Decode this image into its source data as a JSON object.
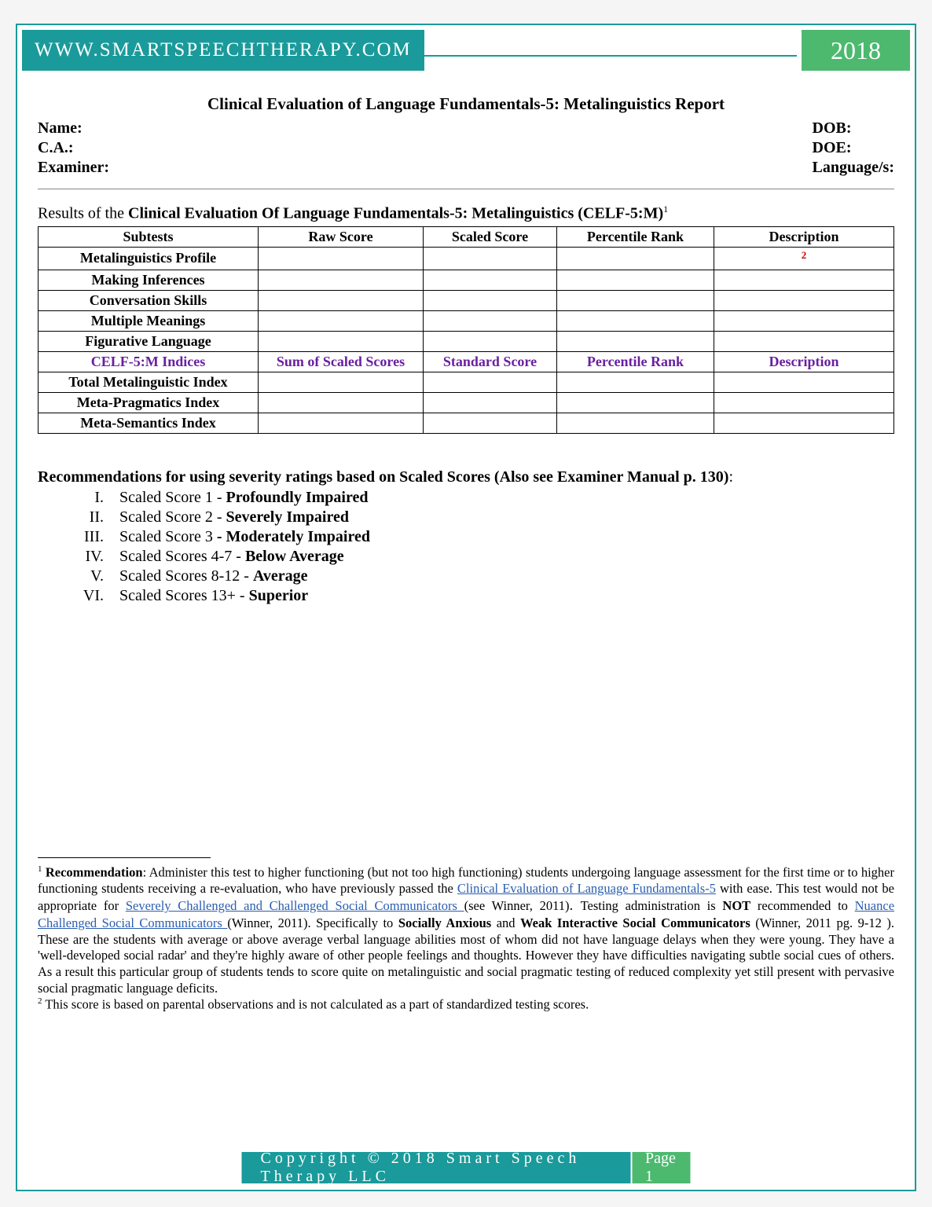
{
  "header": {
    "url": "WWW.SMARTSPEECHTHERAPY.COM",
    "year": "2018"
  },
  "report": {
    "title": "Clinical Evaluation of Language Fundamentals-5: Metalinguistics Report",
    "fields_left": {
      "name": "Name:",
      "ca": "C.A.:",
      "examiner": "Examiner:"
    },
    "fields_right": {
      "dob": "DOB:",
      "doe": "DOE:",
      "lang": "Language/s:"
    },
    "results_prefix": "Results of the ",
    "results_bold": "Clinical Evaluation Of Language Fundamentals-5: Metalinguistics (CELF-5:M)",
    "results_sup": "1"
  },
  "table": {
    "headers": [
      "Subtests",
      "Raw Score",
      "Scaled Score",
      "Percentile Rank",
      "Description"
    ],
    "rows1": [
      {
        "name": "Metalinguistics Profile",
        "desc_sup": "2"
      },
      {
        "name": "Making Inferences"
      },
      {
        "name": "Conversation Skills"
      },
      {
        "name": "Multiple Meanings"
      },
      {
        "name": "Figurative Language"
      }
    ],
    "mid_headers": [
      "CELF-5:M Indices",
      "Sum of Scaled Scores",
      "Standard Score",
      "Percentile Rank",
      "Description"
    ],
    "rows2": [
      {
        "name": "Total Metalinguistic Index"
      },
      {
        "name": "Meta-Pragmatics Index"
      },
      {
        "name": "Meta-Semantics Index"
      }
    ],
    "col_widths": [
      "280px",
      "210px",
      "170px",
      "200px",
      "auto"
    ],
    "colors": {
      "purple": "#6a1fa0",
      "red": "#c00000",
      "border": "#000000"
    }
  },
  "recommendations": {
    "title_plain": "Recommendations for using severity ratings based on Scaled Scores (Also see Examiner Manual p. 130)",
    "colon": ":",
    "items": [
      {
        "rn": "I.",
        "pre": "Scaled Score 1 - ",
        "bold": "Profoundly Impaired"
      },
      {
        "rn": "II.",
        "pre": "Scaled Score 2 - ",
        "bold": "Severely Impaired"
      },
      {
        "rn": "III.",
        "pre": "Scaled Score 3",
        "bold": " - Moderately Impaired"
      },
      {
        "rn": "IV.",
        "pre": "Scaled Scores 4-7 - ",
        "bold": "Below Average"
      },
      {
        "rn": "V.",
        "pre": "Scaled Scores 8-12 - ",
        "bold": "Average"
      },
      {
        "rn": "VI.",
        "pre": "Scaled Scores 13+ - ",
        "bold": "Superior"
      }
    ]
  },
  "footnotes": {
    "f1": {
      "num": "1",
      "lead_bold": " Recommendation",
      "t1": ": Administer this test to higher functioning  (but not too high functioning) students undergoing language assessment for the first time or to higher functioning students receiving a re-evaluation, who have previously passed the ",
      "link1": "Clinical Evaluation of Language Fundamentals-5",
      "t2": " with ease. This test would not be appropriate for ",
      "link2": "Severely Challenged and Challenged Social Communicators ",
      "t3": "(see Winner, 2011)",
      "period": ". ",
      "t4": " Testing administration is ",
      "not": "NOT",
      "t5": " recommended to ",
      "link3": "Nuance Challenged Social Communicators ",
      "t6": "(Winner, 2011). Specifically to ",
      "sa": "Socially Anxious",
      "and": " and ",
      "wisc": "Weak Interactive Social Communicators ",
      "t7": "(Winner, 2011 pg. 9-12 ). These are the students with average or above average verbal language abilities most of whom did not have language delays when they were young. They have a 'well-developed social radar' and they're highly aware of other people feelings and thoughts. However they have difficulties navigating subtle social cues of others. As a result this particular group of students tends to score quite on metalinguistic and social pragmatic testing of reduced complexity yet still present with pervasive social pragmatic language deficits."
    },
    "f2": {
      "num": "2",
      "text": " This score is based on parental observations and is not calculated as a part of standardized testing scores."
    }
  },
  "footer": {
    "copyright": "Copyright © 2018 Smart Speech Therapy LLC",
    "page_label": "Page 1"
  },
  "colors": {
    "teal": "#1a9a9a",
    "green": "#4cb96f",
    "link": "#2a5db0"
  }
}
